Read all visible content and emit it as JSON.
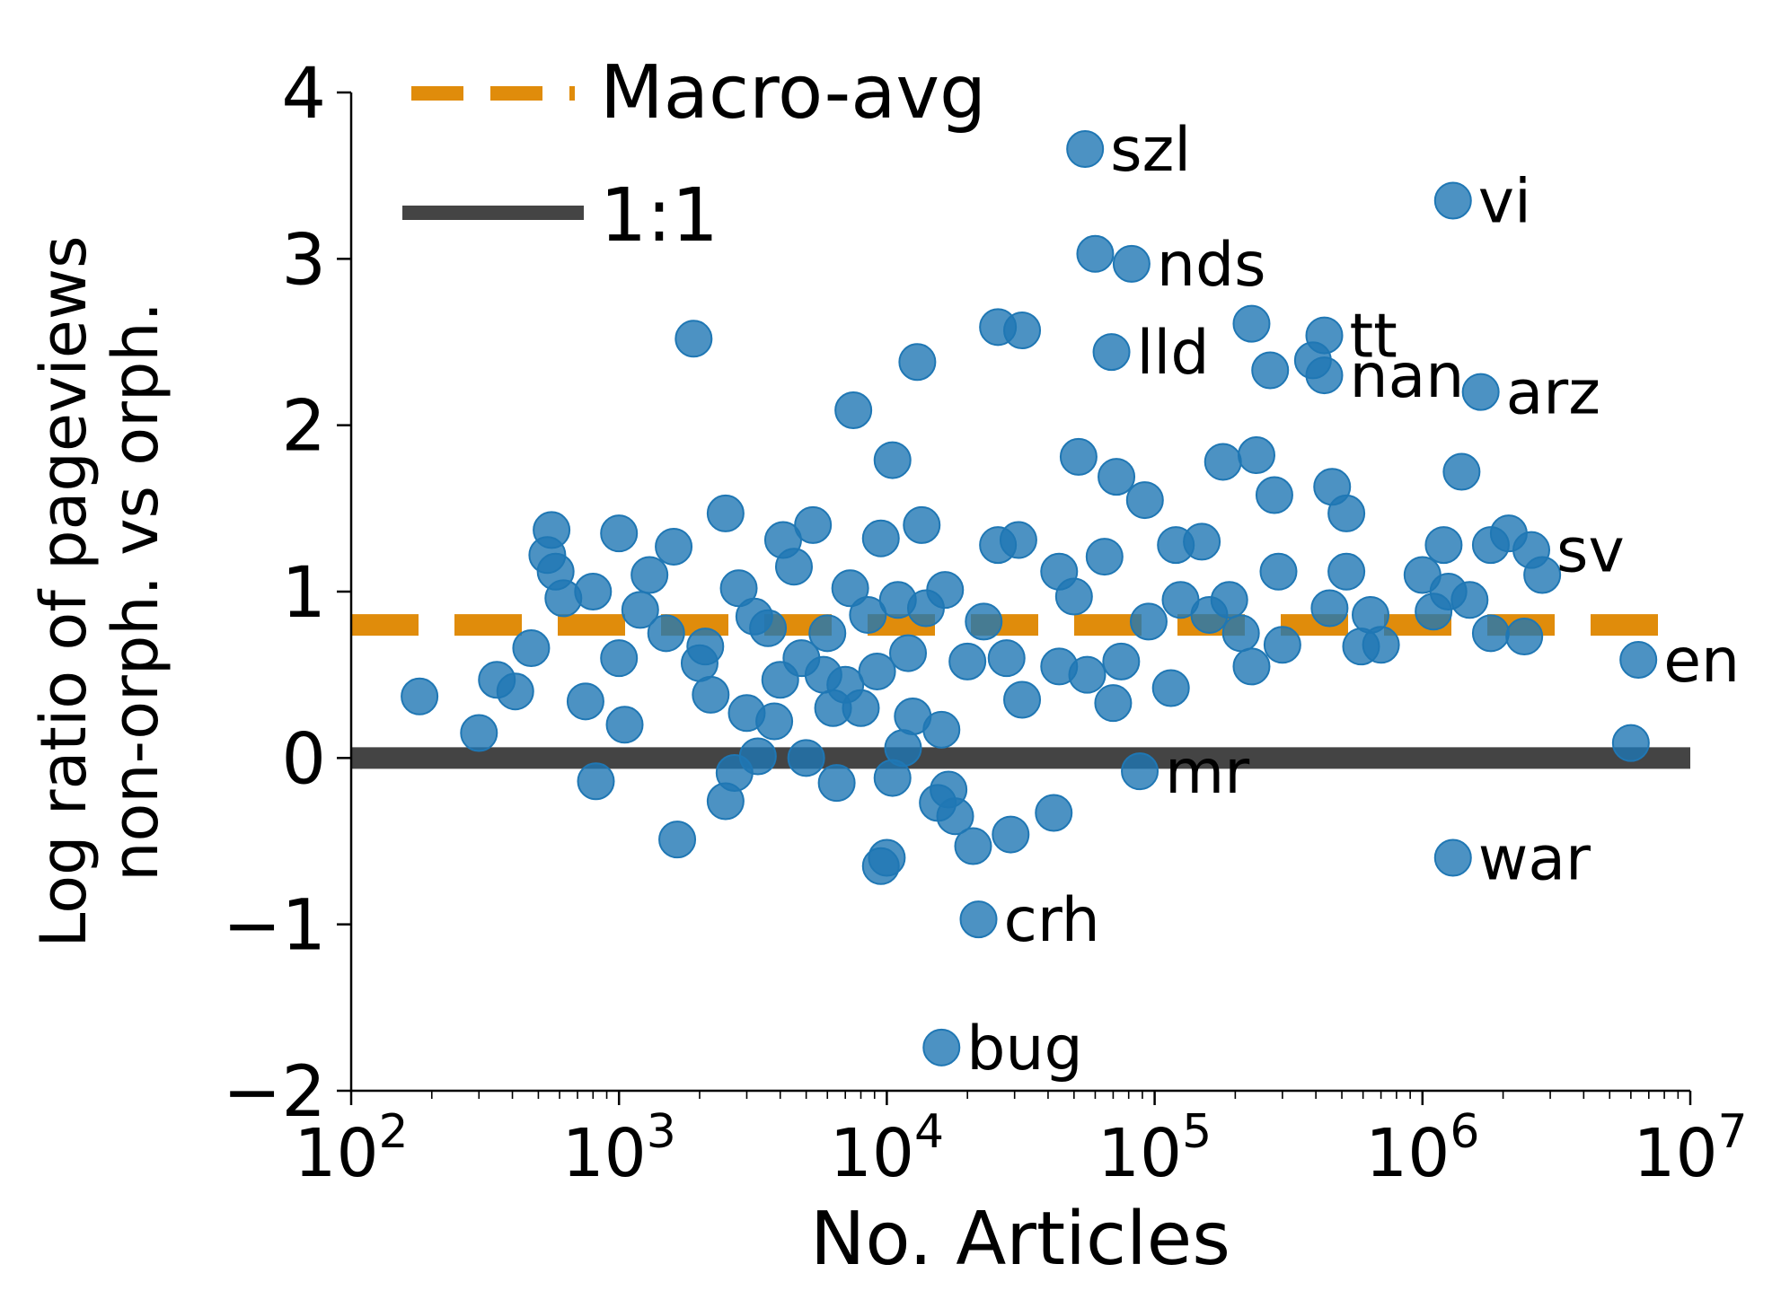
{
  "chart_data": {
    "type": "scatter",
    "title": "",
    "xlabel": "No. Articles",
    "ylabel_lines": [
      "Log ratio of pageviews",
      "non-orph. vs orph."
    ],
    "x_scale": "log",
    "xlim": [
      100,
      10000000
    ],
    "ylim": [
      -2,
      4
    ],
    "x_ticks": [
      {
        "value": 100,
        "base": "10",
        "exp": "2"
      },
      {
        "value": 1000,
        "base": "10",
        "exp": "3"
      },
      {
        "value": 10000,
        "base": "10",
        "exp": "4"
      },
      {
        "value": 100000,
        "base": "10",
        "exp": "5"
      },
      {
        "value": 1000000,
        "base": "10",
        "exp": "6"
      },
      {
        "value": 10000000,
        "base": "10",
        "exp": "7"
      }
    ],
    "y_ticks": [
      {
        "value": 4,
        "label": "4"
      },
      {
        "value": 3,
        "label": "3"
      },
      {
        "value": 2,
        "label": "2"
      },
      {
        "value": 1,
        "label": "1"
      },
      {
        "value": 0,
        "label": "0"
      },
      {
        "value": -1,
        "label": "−1"
      },
      {
        "value": -2,
        "label": "−2"
      }
    ],
    "grid": false,
    "legend_position": "top-left",
    "colors": {
      "points": "#1f77b4",
      "macro_avg": "#e08c0b",
      "one_to_one": "#444444"
    },
    "reference_lines": [
      {
        "name": "Macro-avg",
        "y": 0.8,
        "style": "dashed",
        "color": "#e08c0b"
      },
      {
        "name": "1:1",
        "y": 0.0,
        "style": "solid",
        "color": "#444444"
      }
    ],
    "points": [
      {
        "x": 55000,
        "y": 3.66,
        "label": "szl"
      },
      {
        "x": 1300000,
        "y": 3.35,
        "label": "vi"
      },
      {
        "x": 82000,
        "y": 2.97,
        "label": "nds"
      },
      {
        "x": 430000,
        "y": 2.54,
        "label": "tt"
      },
      {
        "x": 69000,
        "y": 2.44,
        "label": "lld"
      },
      {
        "x": 1650000,
        "y": 2.2,
        "label": "arz"
      },
      {
        "x": 430000,
        "y": 2.3,
        "label": "nan"
      },
      {
        "x": 2550000,
        "y": 1.25,
        "label": "sv"
      },
      {
        "x": 6400000,
        "y": 0.59,
        "label": "en"
      },
      {
        "x": 88000,
        "y": -0.08,
        "label": "mr"
      },
      {
        "x": 1300000,
        "y": -0.6,
        "label": "war"
      },
      {
        "x": 22000,
        "y": -0.97,
        "label": "crh"
      },
      {
        "x": 16000,
        "y": -1.74,
        "label": "bug"
      },
      {
        "x": 60000,
        "y": 3.03
      },
      {
        "x": 1900,
        "y": 2.52
      },
      {
        "x": 26000,
        "y": 2.59
      },
      {
        "x": 32000,
        "y": 2.57
      },
      {
        "x": 13000,
        "y": 2.38
      },
      {
        "x": 7500,
        "y": 2.09
      },
      {
        "x": 230000,
        "y": 2.61
      },
      {
        "x": 270000,
        "y": 2.33
      },
      {
        "x": 390000,
        "y": 2.39
      },
      {
        "x": 10500,
        "y": 1.79
      },
      {
        "x": 52000,
        "y": 1.81
      },
      {
        "x": 72000,
        "y": 1.69
      },
      {
        "x": 92000,
        "y": 1.55
      },
      {
        "x": 180000,
        "y": 1.78
      },
      {
        "x": 240000,
        "y": 1.82
      },
      {
        "x": 280000,
        "y": 1.58
      },
      {
        "x": 460000,
        "y": 1.63
      },
      {
        "x": 520000,
        "y": 1.47
      },
      {
        "x": 1400000,
        "y": 1.72
      },
      {
        "x": 2100000,
        "y": 1.35
      },
      {
        "x": 1800000,
        "y": 1.28
      },
      {
        "x": 2800000,
        "y": 1.1
      },
      {
        "x": 1200000,
        "y": 1.28
      },
      {
        "x": 1000000,
        "y": 1.1
      },
      {
        "x": 1500000,
        "y": 0.95
      },
      {
        "x": 2400000,
        "y": 0.73
      },
      {
        "x": 6000000,
        "y": 0.09
      },
      {
        "x": 1250000,
        "y": 1.0
      },
      {
        "x": 1800000,
        "y": 0.75
      },
      {
        "x": 560,
        "y": 1.37
      },
      {
        "x": 1000,
        "y": 1.35
      },
      {
        "x": 1600,
        "y": 1.27
      },
      {
        "x": 2500,
        "y": 1.47
      },
      {
        "x": 4100,
        "y": 1.31
      },
      {
        "x": 5300,
        "y": 1.4
      },
      {
        "x": 9500,
        "y": 1.32
      },
      {
        "x": 13500,
        "y": 1.4
      },
      {
        "x": 26000,
        "y": 1.28
      },
      {
        "x": 31000,
        "y": 1.31
      },
      {
        "x": 44000,
        "y": 1.12
      },
      {
        "x": 65000,
        "y": 1.21
      },
      {
        "x": 120000,
        "y": 1.28
      },
      {
        "x": 150000,
        "y": 1.3
      },
      {
        "x": 290000,
        "y": 1.12
      },
      {
        "x": 520000,
        "y": 1.12
      },
      {
        "x": 180,
        "y": 0.37
      },
      {
        "x": 300,
        "y": 0.15
      },
      {
        "x": 350,
        "y": 0.47
      },
      {
        "x": 410,
        "y": 0.4
      },
      {
        "x": 470,
        "y": 0.66
      },
      {
        "x": 540,
        "y": 1.22
      },
      {
        "x": 620,
        "y": 0.96
      },
      {
        "x": 750,
        "y": 0.34
      },
      {
        "x": 800,
        "y": 1.0
      },
      {
        "x": 820,
        "y": -0.14
      },
      {
        "x": 1050,
        "y": 0.2
      },
      {
        "x": 1300,
        "y": 1.1
      },
      {
        "x": 1650,
        "y": -0.49
      },
      {
        "x": 2000,
        "y": 0.57
      },
      {
        "x": 2500,
        "y": -0.26
      },
      {
        "x": 2700,
        "y": -0.09
      },
      {
        "x": 3000,
        "y": 0.27
      },
      {
        "x": 3300,
        "y": 0.01
      },
      {
        "x": 4000,
        "y": 0.47
      },
      {
        "x": 5000,
        "y": 0.0
      },
      {
        "x": 6500,
        "y": -0.15
      },
      {
        "x": 7000,
        "y": 0.44
      },
      {
        "x": 8000,
        "y": 0.3
      },
      {
        "x": 9500,
        "y": -0.65
      },
      {
        "x": 10000,
        "y": -0.6
      },
      {
        "x": 10500,
        "y": -0.12
      },
      {
        "x": 11500,
        "y": 0.06
      },
      {
        "x": 15500,
        "y": -0.27
      },
      {
        "x": 17000,
        "y": -0.19
      },
      {
        "x": 18000,
        "y": -0.35
      },
      {
        "x": 21000,
        "y": -0.53
      },
      {
        "x": 29000,
        "y": -0.46
      },
      {
        "x": 42000,
        "y": -0.33
      },
      {
        "x": 16000,
        "y": 0.17
      },
      {
        "x": 16500,
        "y": 1.01
      },
      {
        "x": 20000,
        "y": 0.58
      },
      {
        "x": 23000,
        "y": 0.82
      },
      {
        "x": 28000,
        "y": 0.6
      },
      {
        "x": 32000,
        "y": 0.35
      },
      {
        "x": 44000,
        "y": 0.55
      },
      {
        "x": 50000,
        "y": 0.97
      },
      {
        "x": 56000,
        "y": 0.5
      },
      {
        "x": 70000,
        "y": 0.33
      },
      {
        "x": 75000,
        "y": 0.58
      },
      {
        "x": 95000,
        "y": 0.82
      },
      {
        "x": 115000,
        "y": 0.42
      },
      {
        "x": 160000,
        "y": 0.86
      },
      {
        "x": 230000,
        "y": 0.55
      },
      {
        "x": 300000,
        "y": 0.68
      },
      {
        "x": 450000,
        "y": 0.9
      },
      {
        "x": 590000,
        "y": 0.67
      },
      {
        "x": 700000,
        "y": 0.68
      },
      {
        "x": 640000,
        "y": 0.86
      },
      {
        "x": 1100000,
        "y": 0.88
      },
      {
        "x": 580,
        "y": 1.12
      },
      {
        "x": 1200,
        "y": 0.89
      },
      {
        "x": 2100,
        "y": 0.67
      },
      {
        "x": 3600,
        "y": 0.78
      },
      {
        "x": 6000,
        "y": 0.75
      },
      {
        "x": 8500,
        "y": 0.86
      },
      {
        "x": 12000,
        "y": 0.63
      },
      {
        "x": 14000,
        "y": 0.9
      },
      {
        "x": 2200,
        "y": 0.38
      },
      {
        "x": 3800,
        "y": 0.22
      },
      {
        "x": 5800,
        "y": 0.5
      },
      {
        "x": 12500,
        "y": 0.25
      },
      {
        "x": 190000,
        "y": 0.95
      },
      {
        "x": 210000,
        "y": 0.75
      },
      {
        "x": 125000,
        "y": 0.95
      },
      {
        "x": 1000,
        "y": 0.6
      },
      {
        "x": 1500,
        "y": 0.75
      },
      {
        "x": 2800,
        "y": 1.02
      },
      {
        "x": 4500,
        "y": 1.15
      },
      {
        "x": 7300,
        "y": 1.02
      },
      {
        "x": 9200,
        "y": 0.52
      },
      {
        "x": 11000,
        "y": 0.95
      },
      {
        "x": 3200,
        "y": 0.85
      },
      {
        "x": 4800,
        "y": 0.6
      },
      {
        "x": 6300,
        "y": 0.3
      }
    ]
  }
}
